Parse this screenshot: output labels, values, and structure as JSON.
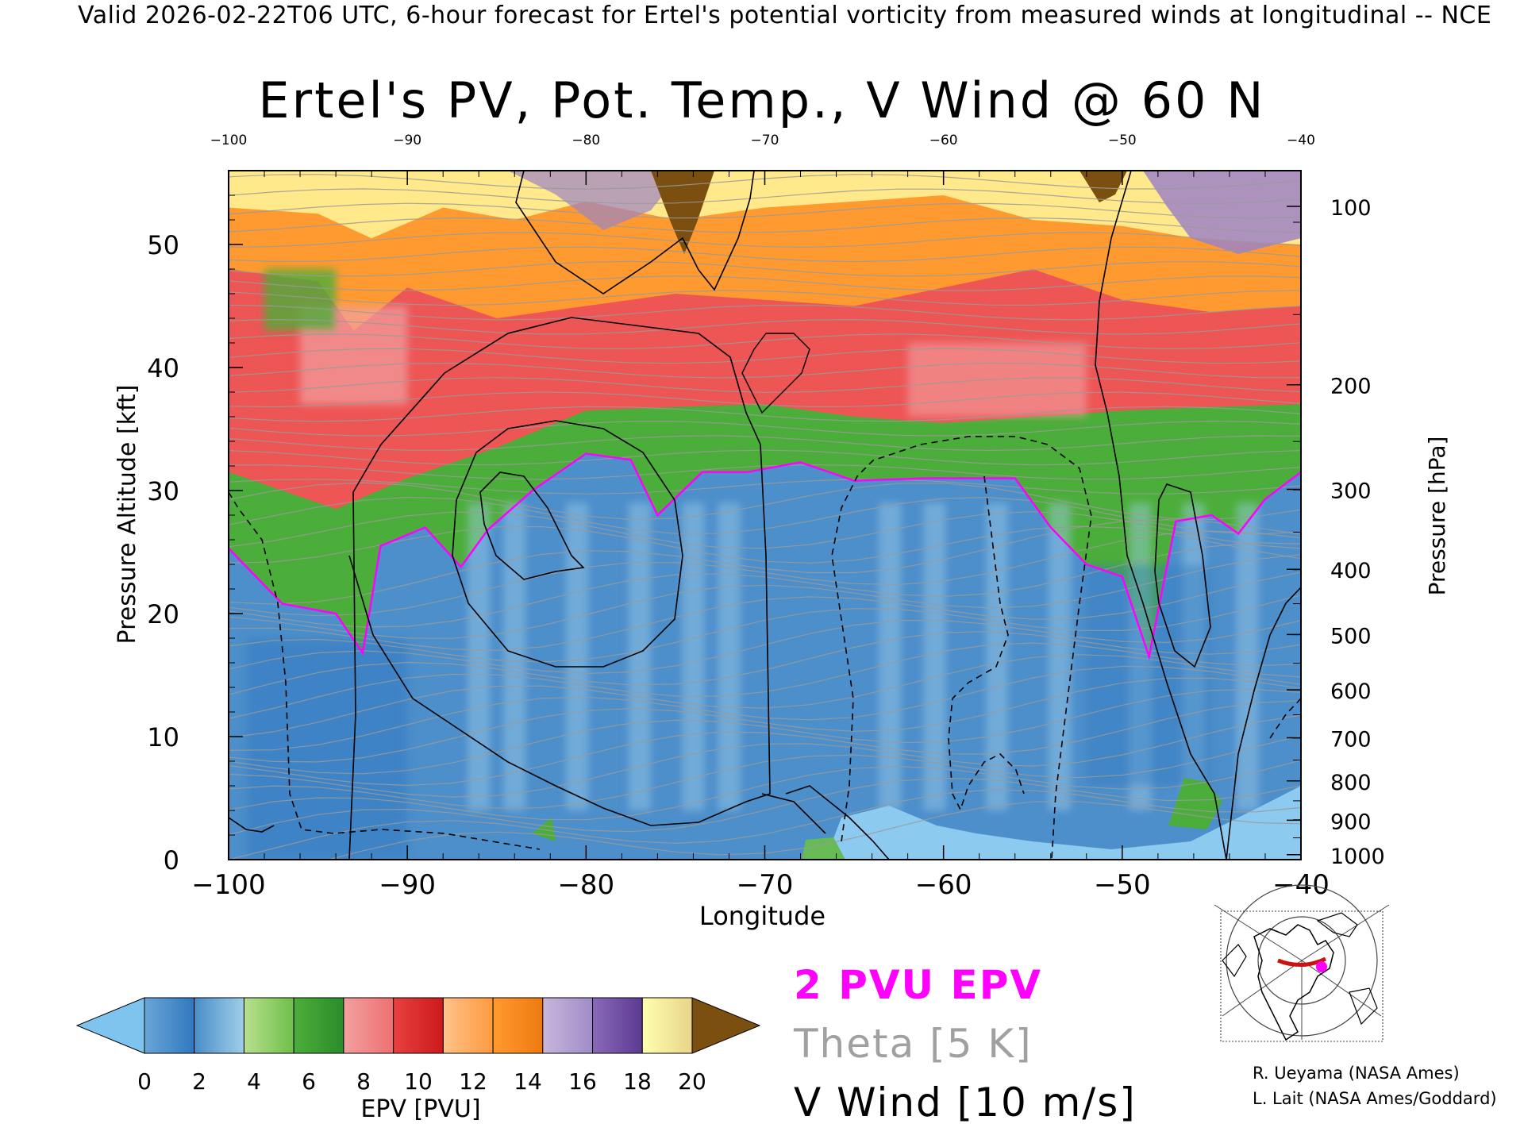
{
  "header": {
    "text": "Valid 2026-02-22T06 UTC, 6-hour forecast for Ertel's potential vorticity from measured winds at longitudinal -- NCE"
  },
  "chart_data": {
    "type": "heatmap",
    "title": "Ertel's PV, Pot. Temp., V Wind @ 60 N",
    "xlabel": "Longitude",
    "ylabel": "Pressure Altitude [kft]",
    "ylabel_right": "Pressure [hPa]",
    "xlim": [
      -100,
      -40
    ],
    "ylim": [
      0,
      56
    ],
    "x_ticks": [
      -100,
      -90,
      -80,
      -70,
      -60,
      -50,
      -40
    ],
    "x_tick_labels": [
      "−100",
      "−90",
      "−80",
      "−70",
      "−60",
      "−50",
      "−40"
    ],
    "x_top_tick_labels": [
      "−100",
      "−90",
      "−80",
      "−70",
      "−60",
      "−50",
      "−40"
    ],
    "y_ticks": [
      0,
      10,
      20,
      30,
      40,
      50
    ],
    "y_tick_labels": [
      "0",
      "10",
      "20",
      "30",
      "40",
      "50"
    ],
    "pressure_ticks": [
      {
        "hpa": 1000,
        "label": "1000",
        "kft": 0.4
      },
      {
        "hpa": 900,
        "label": "900",
        "kft": 3.2
      },
      {
        "hpa": 800,
        "label": "800",
        "kft": 6.4
      },
      {
        "hpa": 700,
        "label": "700",
        "kft": 9.9
      },
      {
        "hpa": 600,
        "label": "600",
        "kft": 13.8
      },
      {
        "hpa": 500,
        "label": "500",
        "kft": 18.3
      },
      {
        "hpa": 400,
        "label": "400",
        "kft": 23.6
      },
      {
        "hpa": 300,
        "label": "300",
        "kft": 30.1
      },
      {
        "hpa": 200,
        "label": "200",
        "kft": 38.6
      },
      {
        "hpa": 100,
        "label": "100",
        "kft": 53.1
      }
    ],
    "tropopause_2pvu_kft": [
      [
        -100,
        25.3
      ],
      [
        -97,
        20.8
      ],
      [
        -94,
        20.0
      ],
      [
        -92.5,
        16.8
      ],
      [
        -91.5,
        25.5
      ],
      [
        -89,
        27.0
      ],
      [
        -87,
        23.8
      ],
      [
        -85.5,
        26.8
      ],
      [
        -83,
        30.0
      ],
      [
        -80,
        33.0
      ],
      [
        -77.5,
        32.5
      ],
      [
        -76,
        28.0
      ],
      [
        -73.5,
        31.5
      ],
      [
        -71,
        31.5
      ],
      [
        -68,
        32.3
      ],
      [
        -65,
        30.8
      ],
      [
        -61,
        31.0
      ],
      [
        -56,
        31.0
      ],
      [
        -54,
        27.0
      ],
      [
        -52,
        24.0
      ],
      [
        -50,
        23.0
      ],
      [
        -48.5,
        16.5
      ],
      [
        -47,
        27.5
      ],
      [
        -45,
        28.0
      ],
      [
        -43.5,
        26.5
      ],
      [
        -42,
        29.3
      ],
      [
        -40,
        31.5
      ]
    ],
    "pv_layer_tops_kft": {
      "blue_top": "tropopause_2pvu",
      "green_top": [
        [
          -100,
          31.5
        ],
        [
          -94,
          28.5
        ],
        [
          -90,
          31.0
        ],
        [
          -85,
          33.5
        ],
        [
          -80,
          36.5
        ],
        [
          -75,
          36.8
        ],
        [
          -70,
          37.0
        ],
        [
          -65,
          36.0
        ],
        [
          -60,
          35.5
        ],
        [
          -55,
          36.0
        ],
        [
          -50,
          36.5
        ],
        [
          -45,
          36.8
        ],
        [
          -40,
          37.0
        ]
      ],
      "red_top": [
        [
          -100,
          48.0
        ],
        [
          -95,
          47.0
        ],
        [
          -93,
          43.0
        ],
        [
          -90,
          46.5
        ],
        [
          -85,
          44.0
        ],
        [
          -80,
          45.0
        ],
        [
          -75,
          46.0
        ],
        [
          -70,
          45.5
        ],
        [
          -65,
          45.0
        ],
        [
          -60,
          46.5
        ],
        [
          -55,
          48.0
        ],
        [
          -50,
          45.5
        ],
        [
          -45,
          44.5
        ],
        [
          -40,
          45.0
        ]
      ],
      "orange_top": [
        [
          -100,
          53.0
        ],
        [
          -95,
          52.5
        ],
        [
          -92,
          50.5
        ],
        [
          -88,
          53.0
        ],
        [
          -84,
          52.0
        ],
        [
          -80,
          53.5
        ],
        [
          -75,
          52.0
        ],
        [
          -70,
          53.0
        ],
        [
          -65,
          53.5
        ],
        [
          -60,
          54.0
        ],
        [
          -55,
          52.0
        ],
        [
          -50,
          51.5
        ],
        [
          -46,
          50.5
        ],
        [
          -40,
          50.0
        ]
      ]
    },
    "v_wind_contours_ms": [
      0,
      10,
      -10
    ],
    "theta_interval_K": 5,
    "colorbar": {
      "min": 0,
      "max": 20,
      "step": 2,
      "tick_labels": [
        "0",
        "2",
        "4",
        "6",
        "8",
        "10",
        "12",
        "14",
        "16",
        "18",
        "20"
      ],
      "label": "EPV [PVU]",
      "colors": [
        [
          "#6aa6d6",
          "#2f78bf"
        ],
        [
          "#4a8dc9",
          "#9fcfe8"
        ],
        [
          "#b8e08e",
          "#6fbf4a"
        ],
        [
          "#4cae3a",
          "#2b8c2b"
        ],
        [
          "#f2a0a0",
          "#ee7070"
        ],
        [
          "#e84040",
          "#cc1a1a"
        ],
        [
          "#ffc28a",
          "#ff9a40"
        ],
        [
          "#ff9a30",
          "#ee7a10"
        ],
        [
          "#c8b6dc",
          "#a08cc8"
        ],
        [
          "#8a6ab8",
          "#5b3a92"
        ],
        [
          "#ffffb0",
          "#e8d488"
        ]
      ],
      "under_color": "#7fc4ee",
      "over_color": "#7a4f10"
    }
  },
  "legend": {
    "pv": "2 PVU EPV",
    "theta": "Theta [5 K]",
    "vwind": "V Wind [10 m/s]"
  },
  "credits": {
    "line1": "R. Ueyama (NASA Ames)",
    "line2": "L. Lait (NASA Ames/Goddard)"
  },
  "map_inset": {
    "icon": "polar-map-icon",
    "track_color": "#cc1111",
    "marker_color": "#ff00ff"
  }
}
